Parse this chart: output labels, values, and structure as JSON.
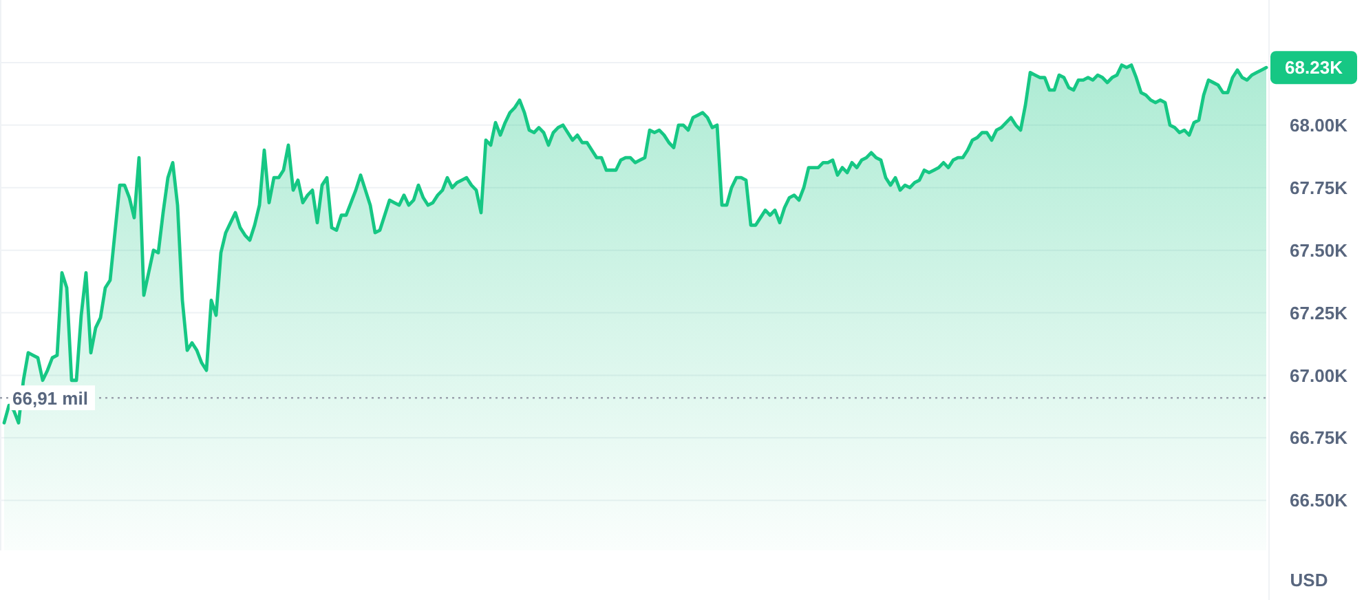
{
  "chart_data": {
    "type": "area",
    "ylabel": "USD",
    "categories": [
      null,
      null,
      null,
      null,
      null,
      null,
      null,
      null,
      null,
      null,
      null,
      null,
      null,
      null,
      null,
      null,
      null,
      null,
      null,
      null,
      null,
      null,
      null,
      null,
      null,
      null,
      null,
      null,
      null,
      null,
      null,
      null,
      null,
      null,
      null,
      null,
      null,
      null,
      null,
      null,
      null,
      null,
      null,
      null,
      null,
      null,
      null,
      null,
      null,
      null,
      null,
      null,
      null,
      null,
      null,
      null,
      null,
      null,
      null,
      null,
      null,
      null,
      null,
      null,
      null,
      null,
      null,
      null,
      null,
      null,
      null,
      null,
      null,
      null,
      null,
      null,
      null,
      null,
      null,
      null,
      null,
      null,
      null,
      null,
      null,
      null,
      null,
      null,
      null,
      null,
      null,
      null,
      null,
      null,
      null,
      null,
      null,
      null,
      null,
      null,
      null,
      null,
      null,
      null,
      null,
      null,
      null,
      null,
      null,
      null,
      null,
      null,
      null,
      null,
      null,
      null,
      null,
      null,
      null,
      null,
      null,
      null,
      null,
      null,
      null,
      null,
      null,
      null,
      null,
      null,
      null,
      null,
      null,
      null,
      null,
      null,
      null,
      null,
      null,
      null,
      null,
      null,
      null,
      null,
      null,
      null,
      null,
      null,
      null,
      null,
      null,
      null,
      null,
      null,
      null,
      null,
      null,
      null,
      null,
      null,
      null,
      null,
      null,
      null,
      null,
      null,
      null,
      null,
      null,
      null,
      null,
      null,
      null,
      null,
      null,
      null,
      null,
      null,
      null,
      null,
      null,
      null,
      null,
      null,
      null,
      null,
      null,
      null,
      null,
      null,
      null,
      null,
      null,
      null,
      null,
      null,
      null,
      null,
      null,
      null,
      null,
      null,
      null,
      null,
      null,
      null,
      null,
      null,
      null,
      null,
      null,
      null,
      null,
      null,
      null,
      null,
      null,
      null,
      null,
      null,
      null,
      null,
      null,
      null,
      null,
      null,
      null,
      null,
      null,
      null,
      null,
      null,
      null,
      null,
      null,
      null,
      null,
      null,
      null,
      null,
      null,
      null,
      null,
      null,
      null,
      null,
      null,
      null,
      null,
      null,
      null,
      null,
      null,
      null,
      null,
      null,
      null,
      null,
      null,
      null,
      null,
      null,
      null
    ],
    "series": [
      {
        "color": "#16c784",
        "values": [
          66.81,
          66.88,
          66.86,
          66.81,
          66.98,
          67.09,
          67.08,
          67.07,
          66.98,
          67.02,
          67.07,
          67.08,
          67.41,
          67.35,
          66.98,
          66.98,
          67.24,
          67.41,
          67.09,
          67.19,
          67.23,
          67.35,
          67.38,
          67.57,
          67.76,
          67.76,
          67.71,
          67.63,
          67.87,
          67.32,
          67.41,
          67.5,
          67.49,
          67.65,
          67.79,
          67.85,
          67.68,
          67.3,
          67.1,
          67.13,
          67.1,
          67.05,
          67.02,
          67.3,
          67.24,
          67.49,
          67.57,
          67.61,
          67.65,
          67.59,
          67.56,
          67.54,
          67.6,
          67.68,
          67.9,
          67.69,
          67.79,
          67.79,
          67.82,
          67.92,
          67.74,
          67.78,
          67.69,
          67.72,
          67.74,
          67.61,
          67.76,
          67.79,
          67.59,
          67.58,
          67.64,
          67.64,
          67.69,
          67.74,
          67.8,
          67.74,
          67.68,
          67.57,
          67.58,
          67.64,
          67.7,
          67.69,
          67.68,
          67.72,
          67.68,
          67.7,
          67.76,
          67.71,
          67.68,
          67.69,
          67.72,
          67.74,
          67.79,
          67.75,
          67.77,
          67.78,
          67.79,
          67.76,
          67.74,
          67.65,
          67.94,
          67.92,
          68.01,
          67.96,
          68.01,
          68.05,
          68.07,
          68.1,
          68.05,
          67.98,
          67.97,
          67.99,
          67.97,
          67.92,
          67.97,
          67.99,
          68.0,
          67.97,
          67.94,
          67.96,
          67.93,
          67.93,
          67.9,
          67.87,
          67.87,
          67.82,
          67.82,
          67.82,
          67.86,
          67.87,
          67.87,
          67.85,
          67.86,
          67.87,
          67.98,
          67.97,
          67.98,
          67.96,
          67.93,
          67.91,
          68.0,
          68.0,
          67.98,
          68.03,
          68.04,
          68.05,
          68.03,
          67.99,
          68.0,
          67.68,
          67.68,
          67.75,
          67.79,
          67.79,
          67.78,
          67.6,
          67.6,
          67.63,
          67.66,
          67.64,
          67.66,
          67.61,
          67.67,
          67.71,
          67.72,
          67.7,
          67.75,
          67.83,
          67.83,
          67.83,
          67.85,
          67.85,
          67.86,
          67.8,
          67.83,
          67.81,
          67.85,
          67.83,
          67.86,
          67.87,
          67.89,
          67.87,
          67.86,
          67.79,
          67.76,
          67.79,
          67.74,
          67.76,
          67.75,
          67.77,
          67.78,
          67.82,
          67.81,
          67.82,
          67.83,
          67.85,
          67.83,
          67.86,
          67.87,
          67.87,
          67.9,
          67.94,
          67.95,
          67.97,
          67.97,
          67.94,
          67.98,
          67.99,
          68.01,
          68.03,
          68.0,
          67.98,
          68.08,
          68.21,
          68.2,
          68.19,
          68.19,
          68.14,
          68.14,
          68.2,
          68.19,
          68.15,
          68.14,
          68.18,
          68.18,
          68.19,
          68.18,
          68.2,
          68.19,
          68.17,
          68.19,
          68.2,
          68.24,
          68.23,
          68.24,
          68.19,
          68.13,
          68.12,
          68.1,
          68.09,
          68.1,
          68.09,
          68.0,
          67.99,
          67.97,
          67.98,
          67.96,
          68.01,
          68.02,
          68.12,
          68.18,
          68.17,
          68.16,
          68.13,
          68.13,
          68.19,
          68.22,
          68.19,
          68.18,
          68.2,
          68.21,
          68.22,
          68.23
        ]
      }
    ],
    "ylim": [
      66.3,
      68.5
    ],
    "yticks": [
      {
        "value": 66.5,
        "label": "66.50K"
      },
      {
        "value": 66.75,
        "label": "66.75K"
      },
      {
        "value": 67,
        "label": "67.00K"
      },
      {
        "value": 67.25,
        "label": "67.25K"
      },
      {
        "value": 67.5,
        "label": "67.50K"
      },
      {
        "value": 67.75,
        "label": "67.75K"
      },
      {
        "value": 68,
        "label": "68.00K"
      },
      {
        "value": 68.25,
        "label": null
      }
    ],
    "grid": "y",
    "ref_lines": [
      {
        "axis": "y",
        "value": 66.91,
        "label": "66,91 mil",
        "line_style": "dotted",
        "color": "#9aa0ac"
      }
    ],
    "annotations": [
      "68.23K"
    ]
  }
}
